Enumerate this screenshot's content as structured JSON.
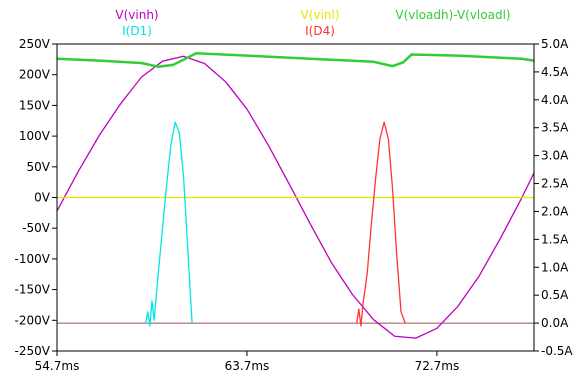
{
  "chart_data": {
    "type": "line",
    "title": "",
    "xlabel": "",
    "ylabel_left": "",
    "ylabel_right": "",
    "grid": false,
    "background": "#ffffff",
    "x_unit": "ms",
    "xlim": [
      54.7,
      77.3
    ],
    "x_ticks": [
      54.7,
      63.7,
      72.7
    ],
    "x_tick_labels": [
      "54.7ms",
      "63.7ms",
      "72.7ms"
    ],
    "ylim_left": [
      -250,
      250
    ],
    "y_left_ticks": [
      250,
      200,
      150,
      100,
      50,
      0,
      -50,
      -100,
      -150,
      -200,
      -250
    ],
    "y_left_tick_labels": [
      "250V",
      "200V",
      "150V",
      "100V",
      "50V",
      "0V",
      "-50V",
      "-100V",
      "-150V",
      "-200V",
      "-250V"
    ],
    "ylim_right": [
      -0.5,
      5.0
    ],
    "y_right_ticks": [
      5.0,
      4.5,
      4.0,
      3.5,
      3.0,
      2.5,
      2.0,
      1.5,
      1.0,
      0.5,
      0.0,
      -0.5
    ],
    "y_right_tick_labels": [
      "5.0A",
      "4.5A",
      "4.0A",
      "3.5A",
      "3.0A",
      "2.5A",
      "2.0A",
      "1.5A",
      "1.0A",
      "0.5A",
      "0.0A",
      "-0.5A"
    ],
    "legend_placement": "top",
    "series": [
      {
        "name": "V(vinh)",
        "color": "#bf00bf",
        "axis": "left",
        "x": [
          54.7,
          55.7,
          56.7,
          57.7,
          58.7,
          59.7,
          60.7,
          61.7,
          62.7,
          63.7,
          64.7,
          65.7,
          66.7,
          67.7,
          68.7,
          69.7,
          70.7,
          71.7,
          72.7,
          73.7,
          74.7,
          75.7,
          76.7,
          77.3
        ],
        "y": [
          -22,
          42,
          101,
          152,
          196,
          222,
          230,
          218,
          188,
          144,
          86,
          22,
          -43,
          -106,
          -158,
          -199,
          -226,
          -229,
          -213,
          -177,
          -128,
          -67,
          -2,
          40
        ]
      },
      {
        "name": "V(vinl)",
        "color": "#e6e600",
        "axis": "left",
        "x": [
          54.7,
          77.3
        ],
        "y": [
          0,
          0
        ]
      },
      {
        "name": "V(vloadh)-V(vloadl)",
        "color": "#33cc33",
        "axis": "left",
        "x": [
          54.7,
          56.7,
          58.7,
          59.5,
          60.2,
          60.9,
          61.3,
          63.7,
          66.7,
          69.7,
          70.6,
          71.1,
          71.5,
          73.7,
          76.7,
          77.3
        ],
        "y": [
          226,
          223,
          219,
          213,
          216,
          228,
          235,
          231,
          226,
          221,
          214,
          220,
          233,
          231,
          226,
          223
        ]
      },
      {
        "name": "I(D1)",
        "color": "#00e5e5",
        "axis": "right",
        "x": [
          58.9,
          59.0,
          59.1,
          59.2,
          59.3,
          59.5,
          59.7,
          59.9,
          60.1,
          60.3,
          60.5,
          60.7,
          60.9,
          61.1
        ],
        "y": [
          0.0,
          0.2,
          -0.05,
          0.4,
          0.05,
          0.9,
          1.7,
          2.5,
          3.2,
          3.6,
          3.4,
          2.6,
          1.3,
          0.0
        ]
      },
      {
        "name": "I(D4)",
        "color": "#ff3333",
        "axis": "right",
        "x": [
          68.9,
          69.0,
          69.1,
          69.2,
          69.4,
          69.6,
          69.8,
          70.0,
          70.2,
          70.4,
          70.6,
          70.8,
          71.0,
          71.2
        ],
        "y": [
          0.0,
          0.25,
          -0.05,
          0.35,
          0.9,
          1.8,
          2.6,
          3.3,
          3.6,
          3.3,
          2.4,
          1.2,
          0.2,
          0.0
        ]
      }
    ],
    "reference_lines": [
      {
        "axis": "right",
        "y": 0.0,
        "color": "#a05050"
      }
    ]
  }
}
